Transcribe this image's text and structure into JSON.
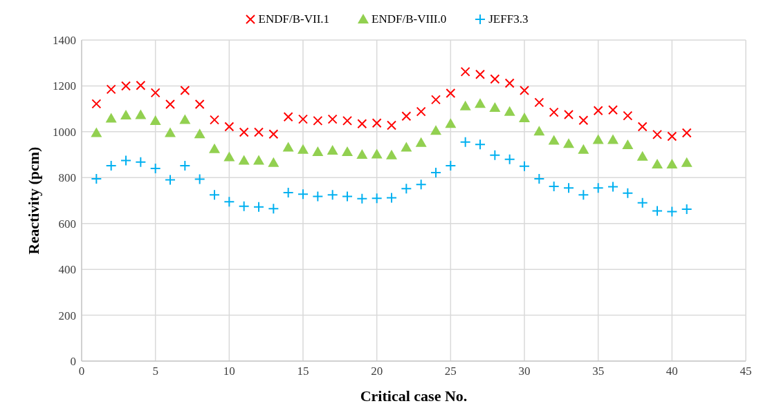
{
  "chart_data": {
    "type": "scatter",
    "xlabel": "Critical case No.",
    "ylabel": "Reactivity (pcm)",
    "x": [
      1,
      2,
      3,
      4,
      5,
      6,
      7,
      8,
      9,
      10,
      11,
      12,
      13,
      14,
      15,
      16,
      17,
      18,
      19,
      20,
      21,
      22,
      23,
      24,
      25,
      26,
      27,
      28,
      29,
      30,
      31,
      32,
      33,
      34,
      35,
      36,
      37,
      38,
      39,
      40,
      41
    ],
    "series": [
      {
        "name": "ENDF/B-VII.1",
        "color": "#ff0000",
        "marker": "cross",
        "values": [
          1122,
          1185,
          1200,
          1202,
          1170,
          1120,
          1180,
          1120,
          1052,
          1022,
          998,
          998,
          990,
          1065,
          1055,
          1048,
          1055,
          1048,
          1035,
          1038,
          1028,
          1068,
          1088,
          1140,
          1168,
          1262,
          1250,
          1230,
          1212,
          1180,
          1128,
          1085,
          1075,
          1050,
          1092,
          1095,
          1070,
          1022,
          988,
          980,
          995
        ]
      },
      {
        "name": "ENDF/B-VIII.0",
        "color": "#92d050",
        "marker": "triangle",
        "values": [
          995,
          1058,
          1072,
          1073,
          1048,
          995,
          1052,
          990,
          925,
          890,
          875,
          875,
          865,
          932,
          922,
          912,
          918,
          912,
          900,
          902,
          898,
          932,
          952,
          1005,
          1035,
          1112,
          1122,
          1105,
          1088,
          1060,
          1002,
          962,
          948,
          922,
          965,
          965,
          942,
          892,
          858,
          858,
          865
        ]
      },
      {
        "name": "JEFF3.3",
        "color": "#00b0f0",
        "marker": "plus",
        "values": [
          795,
          852,
          875,
          868,
          840,
          790,
          852,
          793,
          725,
          695,
          675,
          672,
          665,
          735,
          728,
          718,
          725,
          718,
          708,
          710,
          712,
          752,
          770,
          822,
          852,
          955,
          945,
          898,
          880,
          850,
          795,
          762,
          755,
          725,
          755,
          760,
          732,
          690,
          655,
          652,
          662
        ]
      }
    ],
    "xlim": [
      0,
      45
    ],
    "xticks": [
      0,
      5,
      10,
      15,
      20,
      25,
      30,
      35,
      40,
      45
    ],
    "ylim": [
      0,
      1400
    ],
    "yticks": [
      0,
      200,
      400,
      600,
      800,
      1000,
      1200,
      1400
    ],
    "grid": true,
    "legend": "top"
  }
}
